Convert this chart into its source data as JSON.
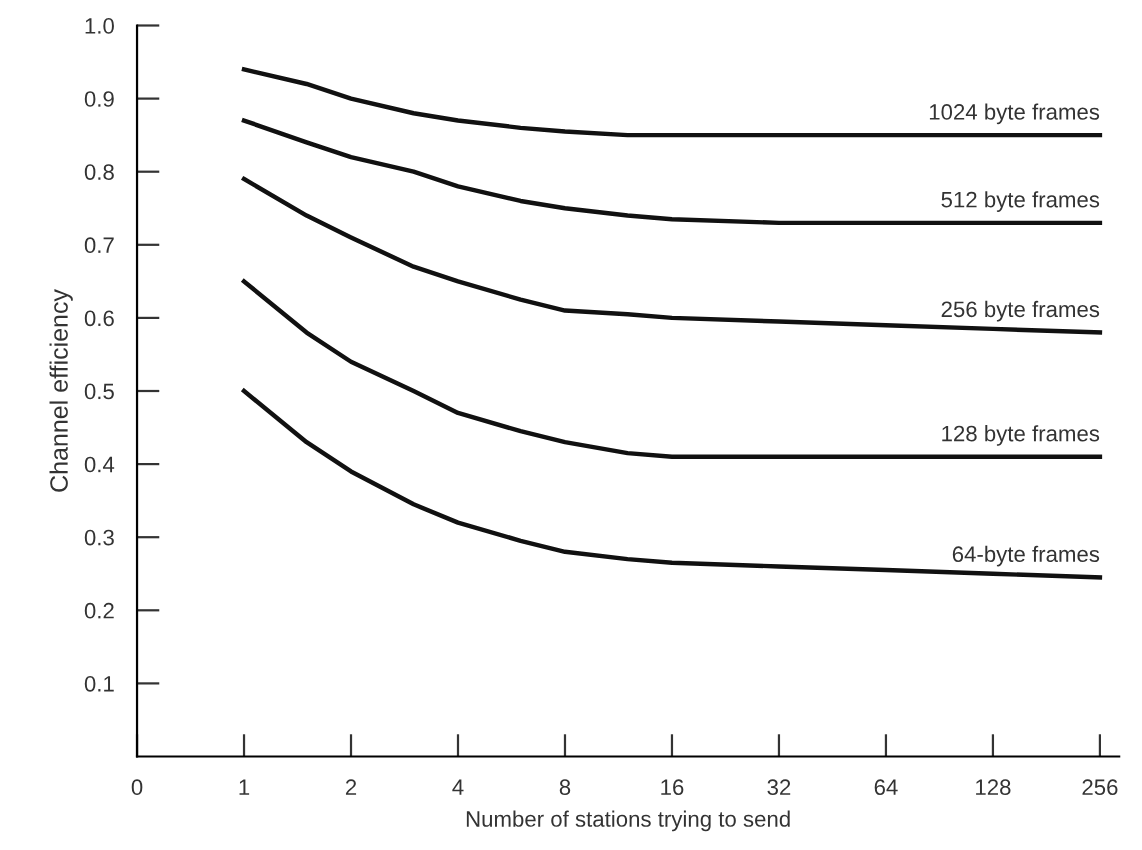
{
  "chart_data": {
    "type": "line",
    "xlabel": "Number of stations trying to send",
    "ylabel": "Channel efficiency",
    "log": "x",
    "x": [
      1,
      1.5,
      2,
      3,
      4,
      6,
      8,
      12,
      16,
      32,
      64,
      128,
      256
    ],
    "series": [
      {
        "name": "1024 byte frames",
        "color": "#111111",
        "values": [
          0.94,
          0.92,
          0.9,
          0.88,
          0.87,
          0.86,
          0.855,
          0.85,
          0.85,
          0.85,
          0.85,
          0.85,
          0.85
        ]
      },
      {
        "name": "512 byte frames",
        "color": "#111111",
        "values": [
          0.87,
          0.84,
          0.82,
          0.8,
          0.78,
          0.76,
          0.75,
          0.74,
          0.735,
          0.73,
          0.73,
          0.73,
          0.73
        ]
      },
      {
        "name": "256 byte frames",
        "color": "#111111",
        "values": [
          0.79,
          0.74,
          0.71,
          0.67,
          0.65,
          0.625,
          0.61,
          0.605,
          0.6,
          0.595,
          0.59,
          0.585,
          0.58
        ]
      },
      {
        "name": "128 byte frames",
        "color": "#111111",
        "values": [
          0.65,
          0.58,
          0.54,
          0.5,
          0.47,
          0.445,
          0.43,
          0.415,
          0.41,
          0.41,
          0.41,
          0.41,
          0.41
        ]
      },
      {
        "name": "64-byte frames",
        "color": "#111111",
        "values": [
          0.5,
          0.43,
          0.39,
          0.345,
          0.32,
          0.295,
          0.28,
          0.27,
          0.265,
          0.26,
          0.255,
          0.25,
          0.245
        ]
      }
    ],
    "xlim": [
      0.5,
      290
    ],
    "xticks": [
      {
        "value": 0.5,
        "label": "0"
      },
      1,
      2,
      4,
      8,
      16,
      32,
      64,
      128,
      256
    ],
    "ylim": [
      0,
      1.0
    ],
    "yticks": [
      0.1,
      0.2,
      0.3,
      0.4,
      0.5,
      0.6,
      0.7,
      0.8,
      0.9,
      {
        "value": 1,
        "label": "1.0"
      }
    ],
    "grid": false,
    "legend": false,
    "marker": "none",
    "line_style": "solid"
  }
}
